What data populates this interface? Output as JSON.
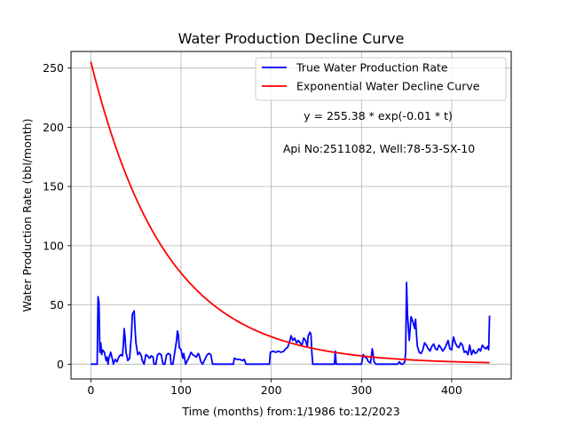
{
  "chart_data": {
    "type": "line",
    "title": "Water Production Decline Curve",
    "xlabel": "Time (months) from:1/1986 to:12/2023",
    "ylabel": "Water Production Rate (bbl/month)",
    "xlim": [
      -22,
      466
    ],
    "ylim": [
      -12.5,
      264
    ],
    "x_ticks": [
      0,
      100,
      200,
      300,
      400
    ],
    "y_ticks": [
      0,
      50,
      100,
      150,
      200,
      250
    ],
    "grid": true,
    "legend_position": "top-right",
    "annotations": [
      "y = 255.38 * exp(-0.01 * t)",
      "Api No:2511082, Well:78-53-SX-10"
    ],
    "series": [
      {
        "name": "True Water Production Rate",
        "color": "#0000ff",
        "points": [
          [
            0,
            0
          ],
          [
            7,
            0
          ],
          [
            8,
            57
          ],
          [
            9,
            52
          ],
          [
            10,
            10
          ],
          [
            11,
            18
          ],
          [
            12,
            8
          ],
          [
            13,
            12
          ],
          [
            15,
            10
          ],
          [
            17,
            3
          ],
          [
            18,
            6
          ],
          [
            19,
            0
          ],
          [
            20,
            5
          ],
          [
            22,
            10
          ],
          [
            24,
            4
          ],
          [
            25,
            0
          ],
          [
            27,
            4
          ],
          [
            29,
            2
          ],
          [
            31,
            6
          ],
          [
            33,
            8
          ],
          [
            35,
            7
          ],
          [
            36,
            16
          ],
          [
            37,
            30
          ],
          [
            38,
            22
          ],
          [
            39,
            10
          ],
          [
            41,
            3
          ],
          [
            43,
            5
          ],
          [
            45,
            25
          ],
          [
            46,
            42
          ],
          [
            48,
            45
          ],
          [
            49,
            30
          ],
          [
            50,
            18
          ],
          [
            51,
            13
          ],
          [
            52,
            8
          ],
          [
            54,
            10
          ],
          [
            56,
            7
          ],
          [
            57,
            3
          ],
          [
            59,
            0
          ],
          [
            61,
            8
          ],
          [
            63,
            7
          ],
          [
            65,
            5
          ],
          [
            67,
            7
          ],
          [
            69,
            6
          ],
          [
            70,
            0
          ],
          [
            72,
            0
          ],
          [
            74,
            8
          ],
          [
            76,
            9
          ],
          [
            78,
            8
          ],
          [
            80,
            0
          ],
          [
            82,
            0
          ],
          [
            84,
            8
          ],
          [
            86,
            9
          ],
          [
            88,
            8
          ],
          [
            89,
            0
          ],
          [
            91,
            0
          ],
          [
            93,
            10
          ],
          [
            95,
            20
          ],
          [
            96,
            28
          ],
          [
            97,
            25
          ],
          [
            98,
            14
          ],
          [
            100,
            12
          ],
          [
            102,
            5
          ],
          [
            103,
            9
          ],
          [
            105,
            0
          ],
          [
            107,
            3
          ],
          [
            109,
            6
          ],
          [
            111,
            10
          ],
          [
            113,
            8
          ],
          [
            115,
            7
          ],
          [
            117,
            6
          ],
          [
            119,
            9
          ],
          [
            120,
            8
          ],
          [
            122,
            2
          ],
          [
            124,
            0
          ],
          [
            127,
            5
          ],
          [
            129,
            8
          ],
          [
            131,
            9
          ],
          [
            133,
            8
          ],
          [
            135,
            0
          ],
          [
            158,
            0
          ],
          [
            159,
            5
          ],
          [
            162,
            4
          ],
          [
            165,
            4
          ],
          [
            168,
            3
          ],
          [
            170,
            4
          ],
          [
            172,
            0
          ],
          [
            198,
            0
          ],
          [
            199,
            10
          ],
          [
            202,
            11
          ],
          [
            205,
            10
          ],
          [
            208,
            11
          ],
          [
            211,
            10
          ],
          [
            214,
            11
          ],
          [
            216,
            13
          ],
          [
            218,
            14
          ],
          [
            220,
            18
          ],
          [
            222,
            24
          ],
          [
            224,
            20
          ],
          [
            226,
            22
          ],
          [
            228,
            18
          ],
          [
            230,
            20
          ],
          [
            232,
            18
          ],
          [
            234,
            16
          ],
          [
            236,
            22
          ],
          [
            238,
            20
          ],
          [
            240,
            15
          ],
          [
            241,
            24
          ],
          [
            243,
            27
          ],
          [
            244,
            25
          ],
          [
            245,
            10
          ],
          [
            246,
            0
          ],
          [
            270,
            0
          ],
          [
            271,
            11
          ],
          [
            272,
            0
          ],
          [
            300,
            0
          ],
          [
            302,
            8
          ],
          [
            304,
            6
          ],
          [
            306,
            5
          ],
          [
            307,
            3
          ],
          [
            308,
            2
          ],
          [
            310,
            1
          ],
          [
            312,
            13
          ],
          [
            313,
            8
          ],
          [
            314,
            2
          ],
          [
            316,
            0
          ],
          [
            340,
            0
          ],
          [
            342,
            2
          ],
          [
            344,
            0
          ],
          [
            346,
            0
          ],
          [
            348,
            2
          ],
          [
            349,
            10
          ],
          [
            350,
            69
          ],
          [
            351,
            42
          ],
          [
            353,
            20
          ],
          [
            355,
            40
          ],
          [
            357,
            36
          ],
          [
            359,
            30
          ],
          [
            360,
            38
          ],
          [
            361,
            25
          ],
          [
            362,
            15
          ],
          [
            364,
            10
          ],
          [
            366,
            9
          ],
          [
            368,
            12
          ],
          [
            370,
            18
          ],
          [
            372,
            16
          ],
          [
            374,
            13
          ],
          [
            376,
            11
          ],
          [
            378,
            15
          ],
          [
            380,
            17
          ],
          [
            382,
            13
          ],
          [
            384,
            12
          ],
          [
            386,
            16
          ],
          [
            388,
            14
          ],
          [
            390,
            11
          ],
          [
            392,
            13
          ],
          [
            394,
            16
          ],
          [
            396,
            20
          ],
          [
            398,
            13
          ],
          [
            400,
            12
          ],
          [
            402,
            23
          ],
          [
            404,
            18
          ],
          [
            406,
            15
          ],
          [
            408,
            14
          ],
          [
            410,
            18
          ],
          [
            412,
            16
          ],
          [
            414,
            10
          ],
          [
            416,
            11
          ],
          [
            418,
            8
          ],
          [
            420,
            16
          ],
          [
            422,
            8
          ],
          [
            424,
            12
          ],
          [
            426,
            9
          ],
          [
            428,
            10
          ],
          [
            430,
            13
          ],
          [
            432,
            11
          ],
          [
            434,
            16
          ],
          [
            436,
            14
          ],
          [
            438,
            13
          ],
          [
            440,
            15
          ],
          [
            441,
            12
          ],
          [
            442,
            41
          ]
        ]
      },
      {
        "name": "Exponential Water Decline Curve",
        "color": "#ff0000",
        "function": {
          "a": 255.38,
          "b": 0.012,
          "x_start": 0,
          "x_end": 443
        }
      }
    ]
  }
}
